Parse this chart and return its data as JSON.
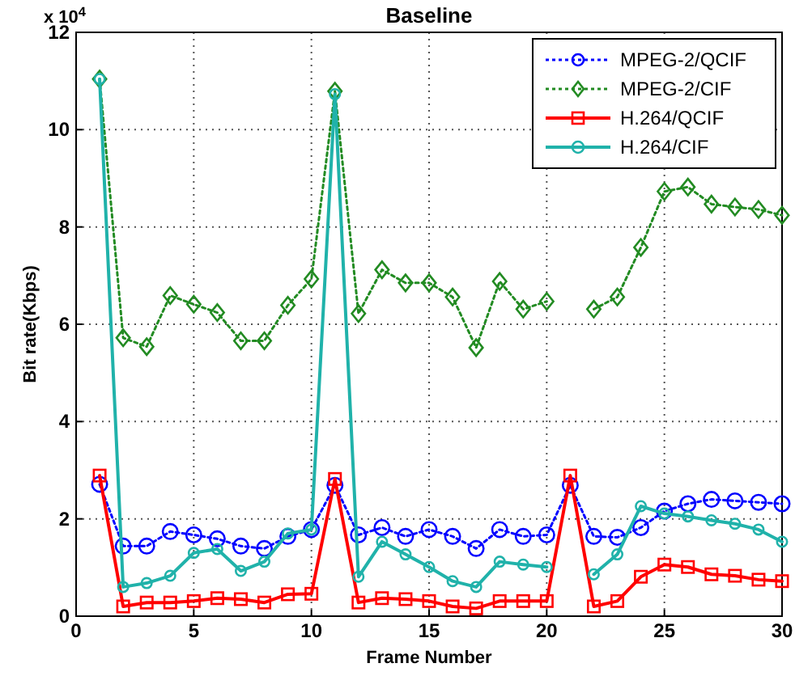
{
  "chart_data": {
    "type": "line",
    "title": "Baseline",
    "xlabel": "Frame Number",
    "ylabel": "Bit rate(Kbps)",
    "annotations": [
      "x 10$^{4}$"
    ],
    "x": [
      1,
      2,
      3,
      4,
      5,
      6,
      7,
      8,
      9,
      10,
      11,
      12,
      13,
      14,
      15,
      16,
      17,
      18,
      19,
      20,
      21,
      22,
      23,
      24,
      25,
      26,
      27,
      28,
      29,
      30
    ],
    "series": [
      {
        "name": "MPEG-2/QCIF",
        "color": "#0000ff",
        "marker": "circle",
        "line_style": "dotted",
        "values": [
          2.71,
          1.44,
          1.44,
          1.74,
          1.67,
          1.59,
          1.44,
          1.39,
          1.64,
          1.78,
          2.69,
          1.67,
          1.82,
          1.64,
          1.78,
          1.64,
          1.39,
          1.78,
          1.64,
          1.67,
          2.69,
          1.64,
          1.62,
          1.82,
          2.16,
          2.31,
          2.4,
          2.37,
          2.34,
          2.31
        ]
      },
      {
        "name": "MPEG-2/CIF",
        "color": "#228b22",
        "marker": "diamond",
        "line_style": "dotted",
        "values": [
          11.04,
          5.72,
          5.54,
          6.59,
          6.41,
          6.24,
          5.66,
          5.66,
          6.39,
          6.93,
          10.79,
          6.22,
          7.12,
          6.85,
          6.85,
          6.56,
          5.52,
          6.88,
          6.31,
          6.47,
          null,
          6.31,
          6.56,
          7.58,
          8.73,
          8.82,
          8.47,
          8.41,
          8.36,
          8.24
        ]
      },
      {
        "name": "H.264/QCIF",
        "color": "#ff0000",
        "marker": "square",
        "line_style": "solid",
        "values": [
          2.89,
          0.2,
          0.28,
          0.28,
          0.31,
          0.37,
          0.35,
          0.28,
          0.45,
          0.46,
          2.82,
          0.28,
          0.37,
          0.35,
          0.31,
          0.2,
          0.16,
          0.31,
          0.31,
          0.31,
          2.89,
          0.2,
          0.31,
          0.81,
          1.06,
          1.01,
          0.86,
          0.83,
          0.75,
          0.72
        ]
      },
      {
        "name": "H.264/CIF",
        "color": "#20b2aa",
        "marker": "circle",
        "line_style": "solid",
        "values": [
          11.04,
          0.6,
          0.68,
          0.83,
          1.3,
          1.38,
          0.93,
          1.12,
          1.7,
          1.78,
          10.73,
          0.81,
          1.53,
          1.27,
          1.01,
          0.72,
          0.6,
          1.12,
          1.06,
          1.01,
          null,
          0.86,
          1.27,
          2.26,
          2.11,
          2.05,
          1.97,
          1.9,
          1.78,
          1.53
        ]
      }
    ],
    "xlim": [
      0,
      30
    ],
    "xticks": [
      0,
      5,
      10,
      15,
      20,
      25,
      30
    ],
    "ylim": [
      0,
      12
    ],
    "yticks": [
      0,
      2,
      4,
      6,
      8,
      10,
      12
    ],
    "grid": true,
    "legend": "top right"
  }
}
